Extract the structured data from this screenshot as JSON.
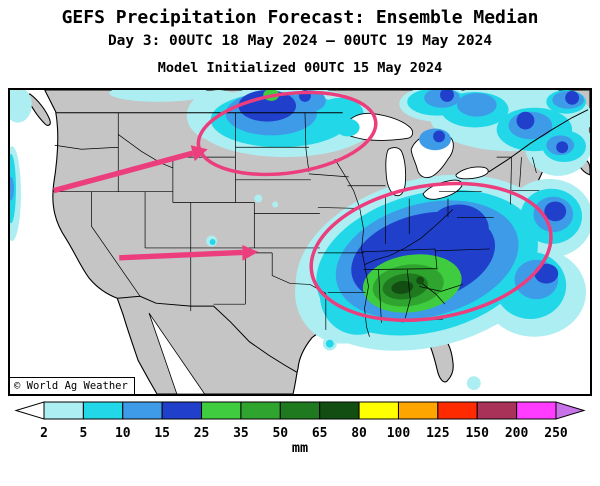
{
  "header": {
    "title": "GEFS Precipitation Forecast: Ensemble Median",
    "subtitle": "Day 3: 00UTC 18 May 2024 — 00UTC 19 May 2024",
    "init_line": "Model Initialized 00UTC 15 May 2024"
  },
  "map": {
    "copyright": "© World Ag Weather",
    "annotation_color": "#EC3D7D",
    "land_color": "#C5C5C5",
    "ocean_color": "#FFFFFF"
  },
  "palette": {
    "under2": "#FFFFFF",
    "p2": "#ACEEF2",
    "p5": "#22D8E8",
    "p10": "#3E9BE8",
    "p15": "#2040CC",
    "p25": "#3FCC3F",
    "p35": "#2FA52F",
    "p50": "#1F7A1F",
    "p65": "#124E12",
    "p80": "#FFFF00",
    "p100": "#FFA500",
    "p125": "#FF2A00",
    "p150": "#A83258",
    "p200": "#FF3CFF",
    "over250": "#C873E8"
  },
  "colorbar": {
    "unit": "mm",
    "ticks": [
      "2",
      "5",
      "10",
      "15",
      "25",
      "35",
      "50",
      "65",
      "80",
      "100",
      "125",
      "150",
      "200",
      "250"
    ],
    "segment_keys": [
      "p2",
      "p5",
      "p10",
      "p15",
      "p25",
      "p35",
      "p50",
      "p65",
      "p80",
      "p100",
      "p125",
      "p150",
      "p200"
    ],
    "left_end_key": "under2",
    "right_end_key": "over250"
  }
}
